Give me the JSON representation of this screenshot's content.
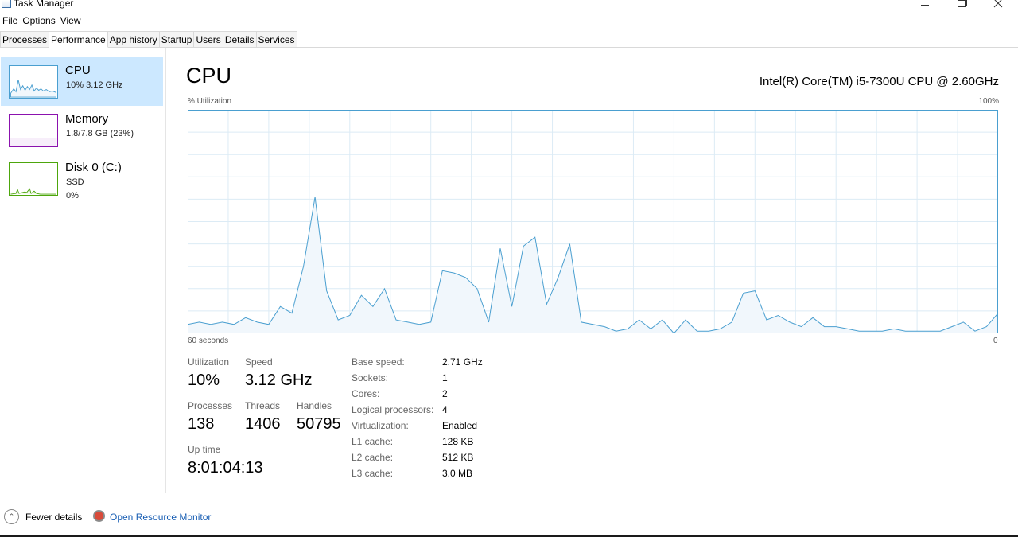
{
  "window": {
    "title": "Task Manager"
  },
  "menu": [
    "File",
    "Options",
    "View"
  ],
  "tabs": [
    "Processes",
    "Performance",
    "App history",
    "Startup",
    "Users",
    "Details",
    "Services"
  ],
  "active_tab": "Performance",
  "sidebar": {
    "items": [
      {
        "title": "CPU",
        "sub": "10% 3.12 GHz",
        "sub2": ""
      },
      {
        "title": "Memory",
        "sub": "1.8/7.8 GB (23%)",
        "sub2": ""
      },
      {
        "title": "Disk 0 (C:)",
        "sub": "SSD",
        "sub2": "0%"
      }
    ]
  },
  "main": {
    "title": "CPU",
    "model": "Intel(R) Core(TM) i5-7300U CPU @ 2.60GHz",
    "graph_label": "% Utilization",
    "graph_max": "100%",
    "axis_left": "60 seconds",
    "axis_right": "0"
  },
  "stats": {
    "utilization_label": "Utilization",
    "utilization": "10%",
    "speed_label": "Speed",
    "speed": "3.12 GHz",
    "processes_label": "Processes",
    "processes": "138",
    "threads_label": "Threads",
    "threads": "1406",
    "handles_label": "Handles",
    "handles": "50795",
    "uptime_label": "Up time",
    "uptime": "8:01:04:13"
  },
  "specs": [
    {
      "label": "Base speed:",
      "value": "2.71 GHz"
    },
    {
      "label": "Sockets:",
      "value": "1"
    },
    {
      "label": "Cores:",
      "value": "2"
    },
    {
      "label": "Logical processors:",
      "value": "4"
    },
    {
      "label": "Virtualization:",
      "value": "Enabled"
    },
    {
      "label": "L1 cache:",
      "value": "128 KB"
    },
    {
      "label": "L2 cache:",
      "value": "512 KB"
    },
    {
      "label": "L3 cache:",
      "value": "3.0 MB"
    }
  ],
  "footer": {
    "fewer_details": "Fewer details",
    "resource_monitor": "Open Resource Monitor"
  },
  "colors": {
    "cpu_line": "#4a9fd0",
    "cpu_fill": "#f1f7fc",
    "memory_line": "#8b12ae",
    "disk_line": "#4da60c",
    "selected": "#cce8ff",
    "link": "#1a5fb4"
  },
  "chart_data": {
    "type": "area",
    "ylim": [
      0,
      100
    ],
    "cpu_history": [
      4,
      5,
      4,
      5,
      4,
      7,
      5,
      4,
      12,
      9,
      30,
      61,
      19,
      6,
      8,
      17,
      12,
      20,
      6,
      5,
      4,
      5,
      28,
      27,
      25,
      20,
      5,
      38,
      12,
      39,
      43,
      13,
      25,
      40,
      5,
      4,
      3,
      1,
      2,
      6,
      2,
      6,
      0,
      6,
      1,
      1,
      2,
      5,
      18,
      19,
      6,
      8,
      5,
      3,
      7,
      3,
      3,
      2,
      1,
      1,
      1,
      2,
      1,
      1,
      1,
      1,
      3,
      5,
      1,
      3,
      9
    ]
  }
}
